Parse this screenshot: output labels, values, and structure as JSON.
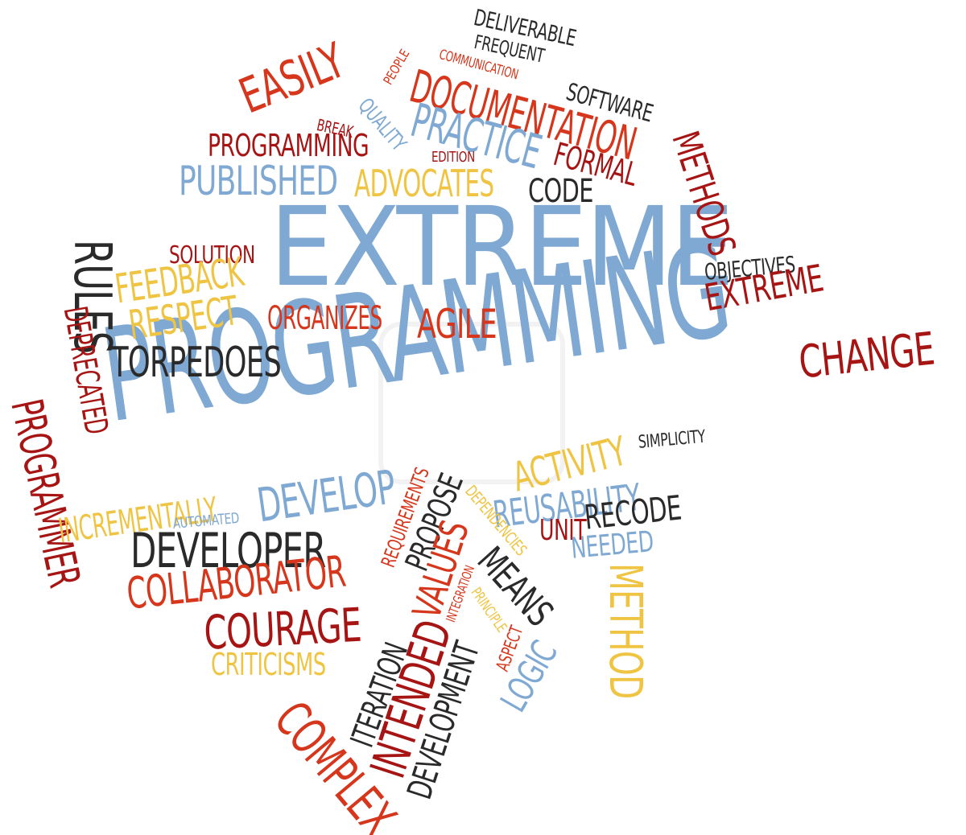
{
  "colors": {
    "blue": "#7fa9d3",
    "red": "#d6361b",
    "darkred": "#a61414",
    "orange": "#e8a33a",
    "yellow": "#f0c443",
    "black": "#2a2a2a"
  },
  "words": {
    "extreme_main": "EXTREME",
    "programming_main": "PROGRAMMING",
    "deliverable": "DELIVERABLE",
    "frequent": "FREQUENT",
    "people": "PEOPLE",
    "communication": "COMMUNICATION",
    "documentation": "DOCUMENTATION",
    "software": "SOFTWARE",
    "easily": "EASILY",
    "quality": "QUALITY",
    "break": "BREAK",
    "practice": "PRACTICE",
    "methods": "METHODS",
    "programming_small": "PROGRAMMING",
    "edition": "EDITION",
    "formal": "FORMAL",
    "published": "PUBLISHED",
    "advocates": "ADVOCATES",
    "code": "CODE",
    "solution": "SOLUTION",
    "rules": "RULES",
    "feedback": "FEEDBACK",
    "respect": "RESPECT",
    "organizes": "ORGANIZES",
    "agile": "AGILE",
    "objectives": "OBJECTIVES",
    "extreme_small": "EXTREME",
    "deprecated": "DEPRECATED",
    "torpedoes": "TORPEDOES",
    "change": "CHANGE",
    "programmer": "PROGRAMMER",
    "activity": "ACTIVITY",
    "simplicity": "SIMPLICITY",
    "incrementally": "INCREMENTALLY",
    "develop": "DEVELOP",
    "reusability": "REUSABILITY",
    "automated": "AUTOMATED",
    "requirements": "REQUIREMENTS",
    "propose": "PROPOSE",
    "dependencies": "DEPENDENCIES",
    "unit": "UNIT",
    "recode": "RECODE",
    "developer": "DEVELOPER",
    "values": "VALUES",
    "integration": "INTEGRATION",
    "means": "MEANS",
    "needed": "NEEDED",
    "collaborator": "COLLABORATOR",
    "principle": "PRINCIPLE",
    "courage": "COURAGE",
    "iteration": "ITERATION",
    "intended": "INTENDED",
    "development": "DEVELOPMENT",
    "aspect": "ASPECT",
    "method": "METHOD",
    "logic": "LOGIC",
    "criticisms": "CRITICISMS",
    "complex": "COMPLEX"
  }
}
